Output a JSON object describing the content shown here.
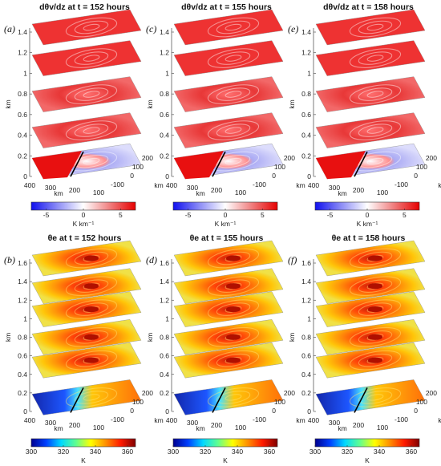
{
  "panels": [
    {
      "id": "a",
      "letter": "(a)",
      "title": "dθv/dz at t = 152 hours",
      "kind": "dtheta",
      "row": 0,
      "col": 0
    },
    {
      "id": "c",
      "letter": "(c)",
      "title": "dθv/dz at t = 155 hours",
      "kind": "dtheta",
      "row": 0,
      "col": 1
    },
    {
      "id": "e",
      "letter": "(e)",
      "title": "dθv/dz at t = 158 hours",
      "kind": "dtheta",
      "row": 0,
      "col": 2
    },
    {
      "id": "b",
      "letter": "(b)",
      "title": "θe at t = 152 hours",
      "kind": "thetae",
      "row": 1,
      "col": 0
    },
    {
      "id": "d",
      "letter": "(d)",
      "title": "θe at t = 155 hours",
      "kind": "thetae",
      "row": 1,
      "col": 1
    },
    {
      "id": "f",
      "letter": "(f)",
      "title": "θe at t = 158 hours",
      "kind": "thetae",
      "row": 1,
      "col": 2
    }
  ],
  "axes": {
    "z_label": "km",
    "x_label": "km",
    "y_label": "km",
    "top_z_ticks": [
      "0",
      "0.2",
      "0.4",
      "0.6",
      "0.8",
      "1",
      "1.2",
      "1.4"
    ],
    "bottom_z_ticks": [
      "0",
      "0.2",
      "0.4",
      "0.6",
      "0.8",
      "1",
      "1.2",
      "1.4",
      "1.6"
    ],
    "x_ticks": [
      "400",
      "300",
      "200",
      "100"
    ],
    "y_ticks": [
      "-100",
      "0",
      "100",
      "200"
    ]
  },
  "colorbars": {
    "dtheta": {
      "ticks": [
        "-5",
        "0",
        "5"
      ],
      "label": "K km⁻¹",
      "range": [
        -7,
        7
      ],
      "colors": [
        "#1010ee",
        "#8c8cf6",
        "#ffffff",
        "#f08080",
        "#e60000"
      ]
    },
    "thetae": {
      "ticks": [
        "300",
        "320",
        "340",
        "360"
      ],
      "label": "K",
      "range": [
        300,
        365
      ],
      "colors": [
        "#00008f",
        "#0040ff",
        "#00d8ff",
        "#60ff90",
        "#ffff00",
        "#ff9000",
        "#ff1a00",
        "#800000"
      ]
    }
  },
  "layers": {
    "dtheta": [
      {
        "level": 0.1,
        "kind": "ground"
      },
      {
        "level": 0.4,
        "kind": "swirl"
      },
      {
        "level": 0.75,
        "kind": "swirl"
      },
      {
        "level": 1.1,
        "kind": "solid"
      },
      {
        "level": 1.4,
        "kind": "solid"
      }
    ],
    "thetae": [
      {
        "level": 0.1,
        "kind": "ground"
      },
      {
        "level": 0.5,
        "kind": "vortex"
      },
      {
        "level": 0.75,
        "kind": "vortex"
      },
      {
        "level": 1.05,
        "kind": "vortex"
      },
      {
        "level": 1.3,
        "kind": "vortex"
      },
      {
        "level": 1.6,
        "kind": "vortex"
      }
    ]
  }
}
